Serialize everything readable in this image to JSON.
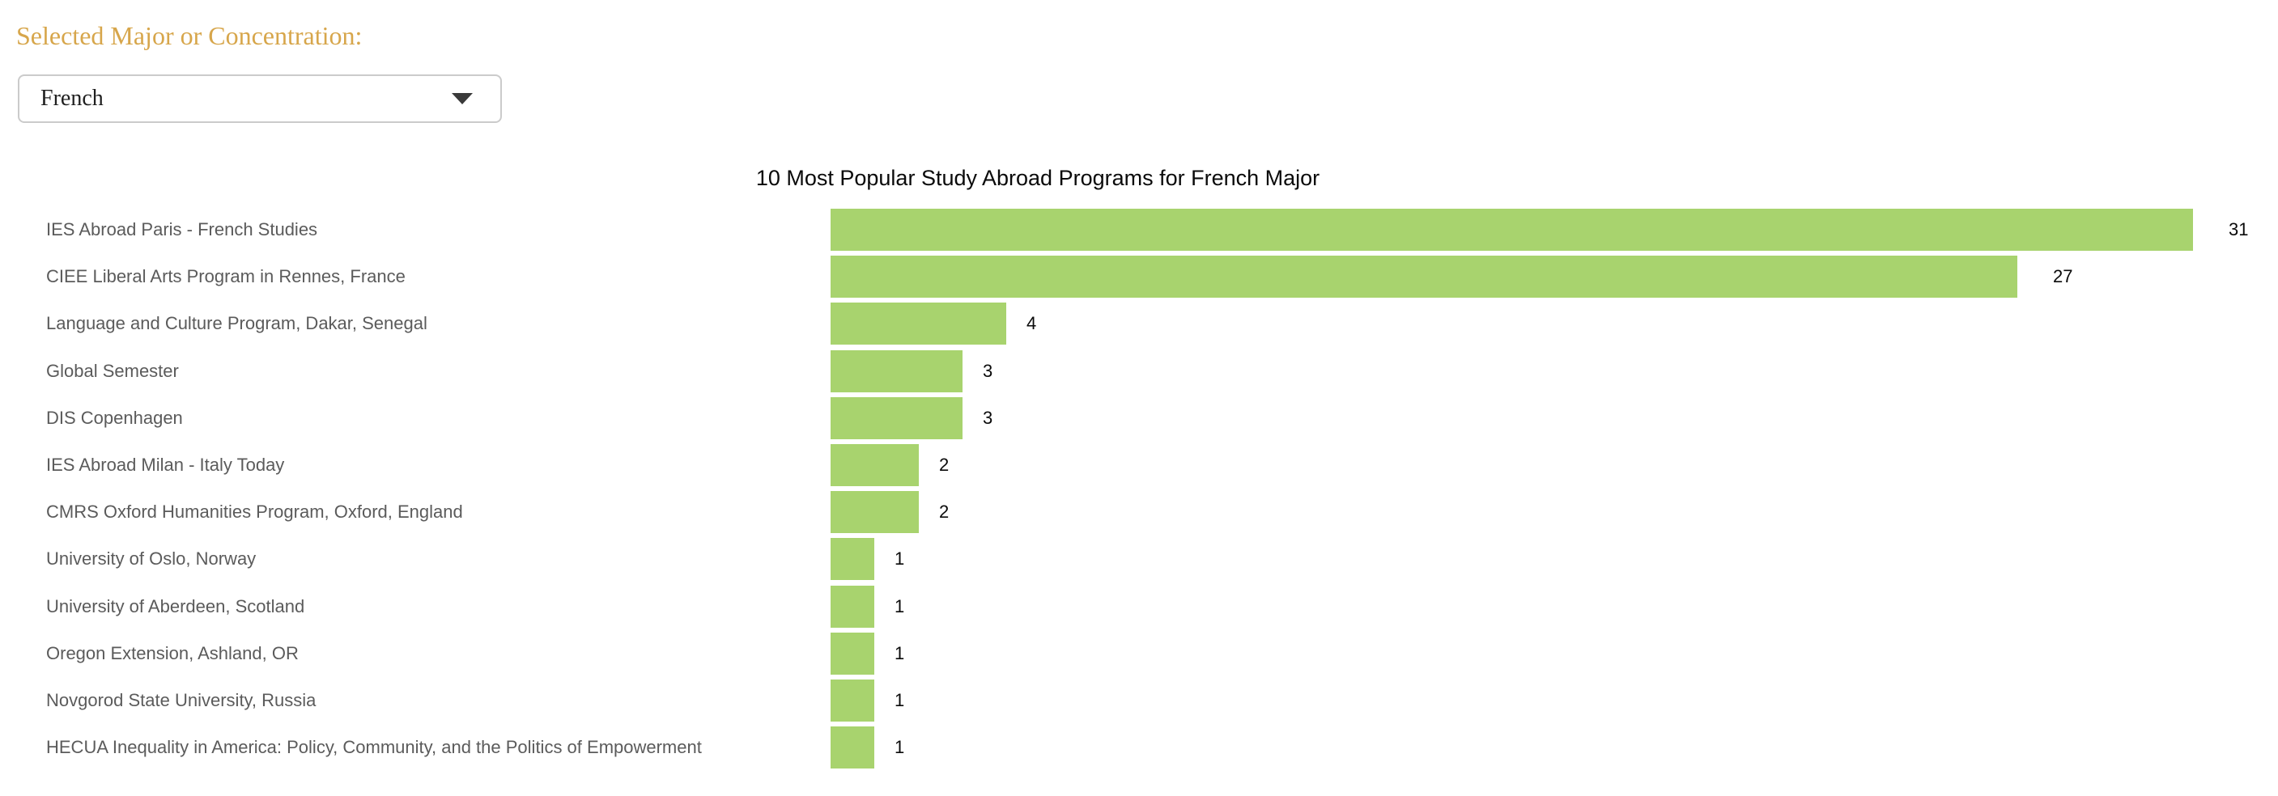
{
  "controls": {
    "label": "Selected Major or Concentration:",
    "accent_color": "#d7a64b",
    "dropdown": {
      "selected": "French"
    }
  },
  "chart_data": {
    "type": "bar",
    "orientation": "horizontal",
    "title": "10 Most Popular Study Abroad Programs for French Major",
    "categories": [
      "IES Abroad Paris - French Studies",
      "CIEE Liberal Arts Program in Rennes, France",
      "Language and Culture Program, Dakar, Senegal",
      "Global Semester",
      "DIS Copenhagen",
      "IES Abroad Milan - Italy Today",
      "CMRS Oxford Humanities Program, Oxford, England",
      "University of Oslo, Norway",
      "University of Aberdeen, Scotland",
      "Oregon Extension, Ashland, OR",
      "Novgorod State University, Russia",
      "HECUA Inequality in America: Policy, Community, and the Politics of Empowerment"
    ],
    "values": [
      31,
      27,
      4,
      3,
      3,
      2,
      2,
      1,
      1,
      1,
      1,
      1
    ],
    "value_labels_shown": true,
    "xlim": [
      0,
      33
    ],
    "grid": false,
    "axis_lines": false,
    "bar_color": "#a8d36e",
    "category_label_color": "#5b5b5b",
    "value_label_color": "#0a0a0a",
    "title_color": "#0a0a0a"
  }
}
